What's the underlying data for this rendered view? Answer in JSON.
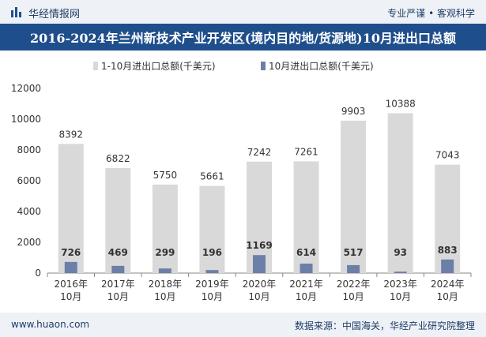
{
  "header": {
    "brand": "华经情报网",
    "tagline": "专业严谨 • 客观科学"
  },
  "footer": {
    "url": "www.huaon.com",
    "source": "数据来源：中国海关，华经产业研究院整理"
  },
  "colors": {
    "series1": "#d9d9d9",
    "series2": "#6b7fa8",
    "title_bg": "#1f4e8c"
  },
  "chart_data": {
    "type": "bar",
    "title": "2016-2024年兰州新技术产业开发区(境内目的地/货源地)10月进出口总额",
    "categories": [
      "2016年\n10月",
      "2017年\n10月",
      "2018年\n10月",
      "2019年\n10月",
      "2020年\n10月",
      "2021年\n10月",
      "2022年\n10月",
      "2023年\n10月",
      "2024年\n10月"
    ],
    "series": [
      {
        "name": "1-10月进出口总额(千美元)",
        "values": [
          8392,
          6822,
          5750,
          5661,
          7242,
          7261,
          9903,
          10388,
          7043
        ]
      },
      {
        "name": "10月进出口总额(千美元)",
        "values": [
          726,
          469,
          299,
          196,
          1169,
          614,
          517,
          93,
          883
        ]
      }
    ],
    "yticks": [
      "0",
      "2000",
      "4000",
      "6000",
      "8000",
      "10000",
      "12000"
    ],
    "ylim": [
      0,
      12000
    ],
    "xlabel": "",
    "ylabel": "",
    "legend_position": "top-center"
  }
}
